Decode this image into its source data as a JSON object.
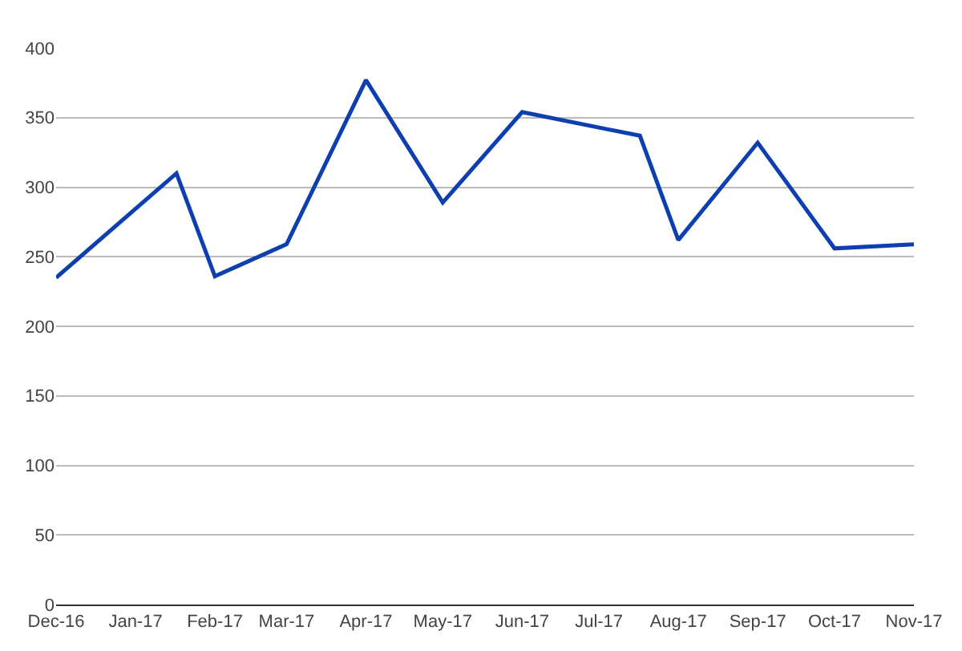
{
  "chart_data": {
    "type": "line",
    "x": [
      "2016-12-01",
      "2017-01-17",
      "2017-02-01",
      "2017-03-01",
      "2017-04-01",
      "2017-05-01",
      "2017-06-01",
      "2017-07-17",
      "2017-08-01",
      "2017-09-01",
      "2017-10-01",
      "2017-11-01"
    ],
    "series": [
      {
        "color": "#0d3fb0",
        "values": [
          235,
          310,
          236,
          259,
          377,
          289,
          354,
          337,
          262,
          332,
          256,
          259
        ]
      }
    ],
    "xlim": [
      "2016-12-01",
      "2017-11-01"
    ],
    "xticks": [
      {
        "value": "2016-12-01",
        "label": "Dec-16"
      },
      {
        "value": "2017-01-01",
        "label": "Jan-17"
      },
      {
        "value": "2017-02-01",
        "label": "Feb-17"
      },
      {
        "value": "2017-03-01",
        "label": "Mar-17"
      },
      {
        "value": "2017-04-01",
        "label": "Apr-17"
      },
      {
        "value": "2017-05-01",
        "label": "May-17"
      },
      {
        "value": "2017-06-01",
        "label": "Jun-17"
      },
      {
        "value": "2017-07-01",
        "label": "Jul-17"
      },
      {
        "value": "2017-08-01",
        "label": "Aug-17"
      },
      {
        "value": "2017-09-01",
        "label": "Sep-17"
      },
      {
        "value": "2017-10-01",
        "label": "Oct-17"
      },
      {
        "value": "2017-11-01",
        "label": "Nov-17"
      }
    ],
    "ylim": [
      0,
      400
    ],
    "yticks": [
      0,
      50,
      100,
      150,
      200,
      250,
      300,
      350,
      400
    ],
    "grid": "y",
    "marker": "none",
    "line_style": "solid"
  }
}
